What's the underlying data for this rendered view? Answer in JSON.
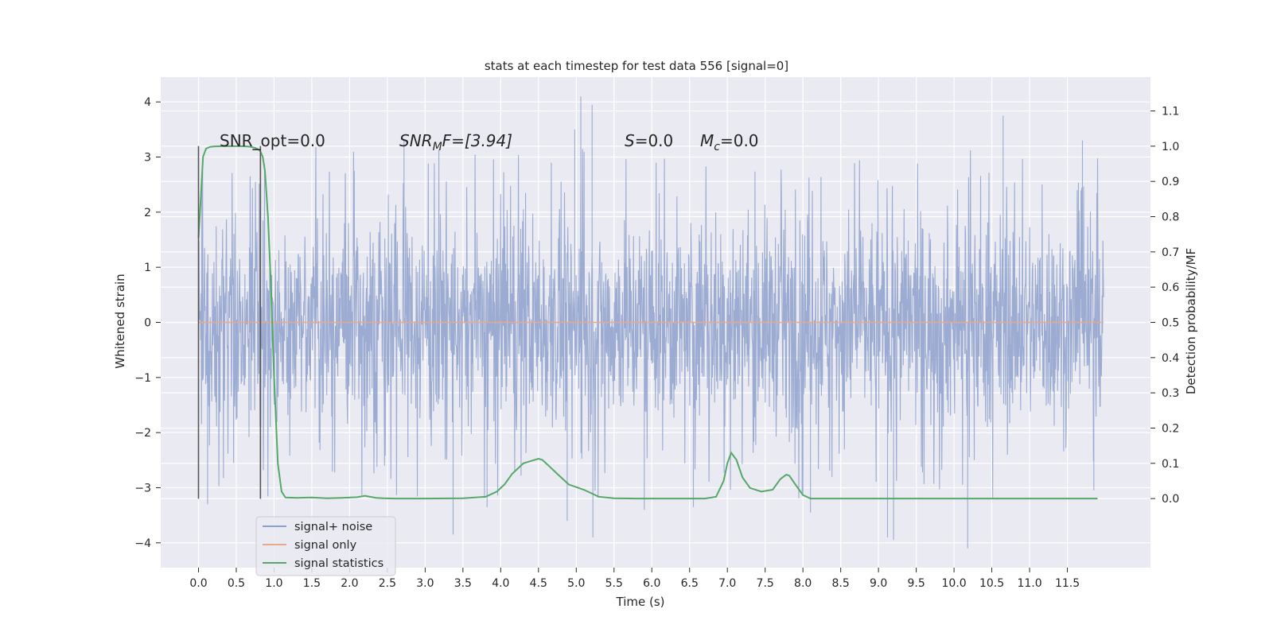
{
  "chart_data": {
    "type": "line",
    "title": "stats at each timestep for test data 556 [signal=0]",
    "xlabel": "Time (s)",
    "ylabel": "Whitened strain",
    "y2label": "Detection probability/MF",
    "xlim": [
      -0.5,
      12.6
    ],
    "ylim": [
      -4.45,
      4.45
    ],
    "y2lim": [
      -0.196,
      1.196
    ],
    "x_ticks": [
      0.0,
      0.5,
      1.0,
      1.5,
      2.0,
      2.5,
      3.0,
      3.5,
      4.0,
      4.5,
      5.0,
      5.5,
      6.0,
      6.5,
      7.0,
      7.5,
      8.0,
      8.5,
      9.0,
      9.5,
      10.0,
      10.5,
      11.0,
      11.5
    ],
    "x_tick_labels": [
      "0.0",
      "0.5",
      "1.0",
      "1.5",
      "2.0",
      "2.5",
      "3.0",
      "3.5",
      "4.0",
      "4.5",
      "5.0",
      "5.5",
      "6.0",
      "6.5",
      "7.0",
      "7.5",
      "8.0",
      "8.5",
      "9.0",
      "9.5",
      "10.0",
      "10.5",
      "11.0",
      "11.5"
    ],
    "y_ticks": [
      4,
      3,
      2,
      1,
      0,
      -1,
      -2,
      -3,
      -4
    ],
    "y_tick_labels": [
      "4",
      "3",
      "2",
      "1",
      "0",
      "−1",
      "−2",
      "−3",
      "−4"
    ],
    "y2_ticks": [
      1.1,
      1.0,
      0.9,
      0.8,
      0.7,
      0.6,
      0.5,
      0.4,
      0.3,
      0.2,
      0.1,
      0.0
    ],
    "y2_tick_labels": [
      "1.1",
      "1.0",
      "0.9",
      "0.8",
      "0.7",
      "0.6",
      "0.5",
      "0.4",
      "0.3",
      "0.2",
      "0.1",
      "0.0"
    ],
    "grid": true,
    "legend": {
      "position": "lower-left",
      "items": [
        {
          "label": "signal+ noise",
          "color": "#8da0cb"
        },
        {
          "label": "signal only",
          "color": "#e9a88a"
        },
        {
          "label": "signal statistics",
          "color": "#55a868"
        }
      ]
    },
    "annotations": {
      "snr_opt": "SNR_opt=0.0",
      "snr_mf_base": "SNR",
      "snr_mf_sub": "M",
      "snr_mf_rest": "F=[3.94]",
      "s_label": "S",
      "s_value": "=0.0",
      "mc_base": "M",
      "mc_sub": "c",
      "mc_value": "=0.0"
    },
    "vertical_markers_x": [
      0.0,
      0.82
    ],
    "noise_series": {
      "name": "signal+ noise",
      "x_range": [
        0.0,
        11.98
      ],
      "envelope_abs_typical": 2.3,
      "max": 4.1,
      "min": -4.1,
      "spikes": [
        {
          "x": 0.12,
          "y": -3.3
        },
        {
          "x": 3.37,
          "y": -3.85
        },
        {
          "x": 3.82,
          "y": -3.35
        },
        {
          "x": 5.06,
          "y": 4.1
        },
        {
          "x": 5.21,
          "y": 3.95
        },
        {
          "x": 5.22,
          "y": -3.9
        },
        {
          "x": 4.88,
          "y": -3.6
        },
        {
          "x": 5.9,
          "y": -3.4
        },
        {
          "x": 6.55,
          "y": -3.35
        },
        {
          "x": 8.1,
          "y": -3.45
        },
        {
          "x": 9.12,
          "y": -3.9
        },
        {
          "x": 9.2,
          "y": -3.95
        },
        {
          "x": 10.18,
          "y": -4.1
        },
        {
          "x": 10.65,
          "y": 3.75
        },
        {
          "x": 11.85,
          "y": -3.05
        },
        {
          "x": 11.7,
          "y": 3.3
        },
        {
          "x": 2.72,
          "y": 3.3
        },
        {
          "x": 4.98,
          "y": 3.5
        }
      ]
    },
    "signal_only_series": {
      "name": "signal only",
      "x": [
        0.0,
        11.98
      ],
      "y": [
        0.0,
        0.0
      ]
    },
    "stat_series": {
      "name": "signal statistics",
      "x": [
        0.0,
        0.03,
        0.06,
        0.1,
        0.15,
        0.2,
        0.3,
        0.4,
        0.55,
        0.65,
        0.7,
        0.75,
        0.8,
        0.82,
        0.85,
        0.88,
        0.92,
        0.96,
        1.0,
        1.05,
        1.1,
        1.15,
        1.3,
        1.5,
        1.7,
        1.9,
        2.1,
        2.2,
        2.3,
        2.35,
        2.45,
        2.6,
        2.8,
        3.0,
        3.5,
        3.8,
        3.95,
        4.05,
        4.15,
        4.3,
        4.45,
        4.5,
        4.55,
        4.65,
        4.75,
        4.9,
        5.1,
        5.3,
        5.5,
        5.8,
        6.1,
        6.4,
        6.7,
        6.85,
        6.95,
        7.0,
        7.05,
        7.12,
        7.2,
        7.3,
        7.45,
        7.6,
        7.7,
        7.78,
        7.82,
        7.9,
        8.0,
        8.1,
        8.3,
        8.5,
        9.0,
        10.0,
        11.0,
        11.9
      ],
      "y": [
        0.74,
        0.85,
        0.97,
        0.993,
        0.998,
        0.999,
        1.0,
        1.0,
        1.0,
        0.999,
        0.998,
        0.995,
        0.99,
        0.985,
        0.97,
        0.93,
        0.8,
        0.6,
        0.35,
        0.1,
        0.02,
        0.003,
        0.002,
        0.003,
        0.001,
        0.002,
        0.004,
        0.008,
        0.004,
        0.002,
        0.001,
        0.0,
        0.0,
        0.0,
        0.001,
        0.005,
        0.02,
        0.04,
        0.07,
        0.1,
        0.11,
        0.113,
        0.11,
        0.09,
        0.07,
        0.04,
        0.025,
        0.005,
        0.001,
        0.0,
        0.0,
        0.0,
        0.0,
        0.005,
        0.05,
        0.1,
        0.13,
        0.11,
        0.06,
        0.03,
        0.02,
        0.025,
        0.055,
        0.068,
        0.065,
        0.04,
        0.01,
        0.0,
        0.0,
        0.0,
        0.0,
        0.0,
        0.0,
        0.0
      ]
    }
  }
}
